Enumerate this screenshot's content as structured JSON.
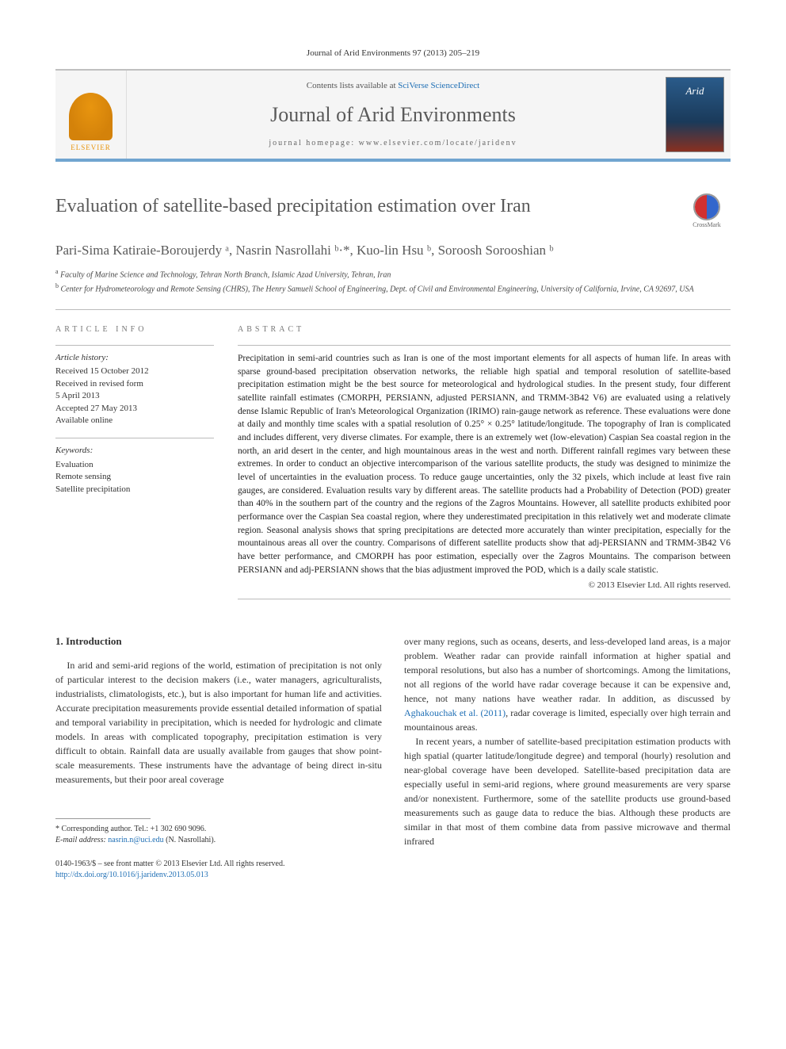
{
  "citation": "Journal of Arid Environments 97 (2013) 205–219",
  "masthead": {
    "contents_prefix": "Contents lists available at ",
    "contents_link": "SciVerse ScienceDirect",
    "journal_name": "Journal of Arid Environments",
    "homepage_prefix": "journal homepage: ",
    "homepage_url": "www.elsevier.com/locate/jaridenv",
    "publisher": "ELSEVIER",
    "cover_label": "Arid"
  },
  "crossmark_label": "CrossMark",
  "title": "Evaluation of satellite-based precipitation estimation over Iran",
  "authors_html": "Pari-Sima Katiraie-Boroujerdy ᵃ, Nasrin Nasrollahi ᵇ·*, Kuo-lin Hsu ᵇ, Soroosh Sorooshian ᵇ",
  "affiliations": {
    "a": "Faculty of Marine Science and Technology, Tehran North Branch, Islamic Azad University, Tehran, Iran",
    "b": "Center for Hydrometeorology and Remote Sensing (CHRS), The Henry Samueli School of Engineering, Dept. of Civil and Environmental Engineering, University of California, Irvine, CA 92697, USA"
  },
  "info": {
    "label": "ARTICLE INFO",
    "history_label": "Article history:",
    "history": [
      "Received 15 October 2012",
      "Received in revised form",
      "5 April 2013",
      "Accepted 27 May 2013",
      "Available online"
    ],
    "keywords_label": "Keywords:",
    "keywords": [
      "Evaluation",
      "Remote sensing",
      "Satellite precipitation"
    ]
  },
  "abstract": {
    "label": "ABSTRACT",
    "text": "Precipitation in semi-arid countries such as Iran is one of the most important elements for all aspects of human life. In areas with sparse ground-based precipitation observation networks, the reliable high spatial and temporal resolution of satellite-based precipitation estimation might be the best source for meteorological and hydrological studies. In the present study, four different satellite rainfall estimates (CMORPH, PERSIANN, adjusted PERSIANN, and TRMM-3B42 V6) are evaluated using a relatively dense Islamic Republic of Iran's Meteorological Organization (IRIMO) rain-gauge network as reference. These evaluations were done at daily and monthly time scales with a spatial resolution of 0.25° × 0.25° latitude/longitude. The topography of Iran is complicated and includes different, very diverse climates. For example, there is an extremely wet (low-elevation) Caspian Sea coastal region in the north, an arid desert in the center, and high mountainous areas in the west and north. Different rainfall regimes vary between these extremes. In order to conduct an objective intercomparison of the various satellite products, the study was designed to minimize the level of uncertainties in the evaluation process. To reduce gauge uncertainties, only the 32 pixels, which include at least five rain gauges, are considered. Evaluation results vary by different areas. The satellite products had a Probability of Detection (POD) greater than 40% in the southern part of the country and the regions of the Zagros Mountains. However, all satellite products exhibited poor performance over the Caspian Sea coastal region, where they underestimated precipitation in this relatively wet and moderate climate region. Seasonal analysis shows that spring precipitations are detected more accurately than winter precipitation, especially for the mountainous areas all over the country. Comparisons of different satellite products show that adj-PERSIANN and TRMM-3B42 V6 have better performance, and CMORPH has poor estimation, especially over the Zagros Mountains. The comparison between PERSIANN and adj-PERSIANN shows that the bias adjustment improved the POD, which is a daily scale statistic.",
    "copyright": "© 2013 Elsevier Ltd. All rights reserved."
  },
  "body": {
    "heading": "1. Introduction",
    "col1_p1": "In arid and semi-arid regions of the world, estimation of precipitation is not only of particular interest to the decision makers (i.e., water managers, agriculturalists, industrialists, climatologists, etc.), but is also important for human life and activities. Accurate precipitation measurements provide essential detailed information of spatial and temporal variability in precipitation, which is needed for hydrologic and climate models. In areas with complicated topography, precipitation estimation is very difficult to obtain. Rainfall data are usually available from gauges that show point-scale measurements. These instruments have the advantage of being direct in-situ measurements, but their poor areal coverage",
    "col2_p1_pre": "over many regions, such as oceans, deserts, and less-developed land areas, is a major problem. Weather radar can provide rainfall information at higher spatial and temporal resolutions, but also has a number of shortcomings. Among the limitations, not all regions of the world have radar coverage because it can be expensive and, hence, not many nations have weather radar. In addition, as discussed by ",
    "col2_p1_link": "Aghakouchak et al. (2011)",
    "col2_p1_post": ", radar coverage is limited, especially over high terrain and mountainous areas.",
    "col2_p2": "In recent years, a number of satellite-based precipitation estimation products with high spatial (quarter latitude/longitude degree) and temporal (hourly) resolution and near-global coverage have been developed. Satellite-based precipitation data are especially useful in semi-arid regions, where ground measurements are very sparse and/or nonexistent. Furthermore, some of the satellite products use ground-based measurements such as gauge data to reduce the bias. Although these products are similar in that most of them combine data from passive microwave and thermal infrared"
  },
  "footnote": {
    "corresponding": "* Corresponding author. Tel.: +1 302 690 9096.",
    "email_label": "E-mail address: ",
    "email": "nasrin.n@uci.edu",
    "email_who": " (N. Nasrollahi)."
  },
  "footer": {
    "line1": "0140-1963/$ – see front matter © 2013 Elsevier Ltd. All rights reserved.",
    "doi": "http://dx.doi.org/10.1016/j.jaridenv.2013.05.013"
  },
  "colors": {
    "link": "#1f6fb5",
    "rule_blue": "#71a5d0",
    "text_gray": "#5a5a5a"
  }
}
